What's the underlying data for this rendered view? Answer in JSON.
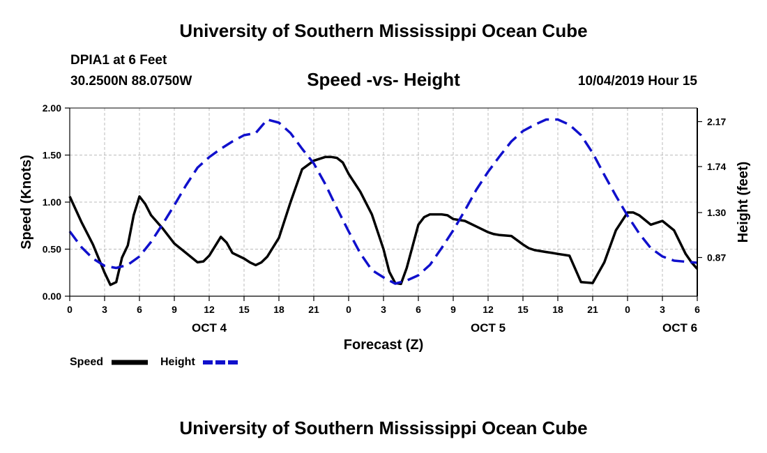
{
  "header": {
    "title": "University of Southern Mississippi Ocean Cube",
    "station": "DPIA1 at 6 Feet",
    "coords": "30.2500N 88.0750W",
    "datetime": "10/04/2019 Hour 15"
  },
  "footer": {
    "title": "University of Southern Mississippi Ocean Cube"
  },
  "colors": {
    "speed": "#000000",
    "height": "#1010cc",
    "grid": "#bbbbbb"
  },
  "chart_data": {
    "type": "line",
    "title": "Speed -vs- Height",
    "xlabel": "Forecast (Z)",
    "ylabel": "Speed (Knots)",
    "y2label": "Height (feet)",
    "xlim": [
      0,
      54
    ],
    "ylim": [
      0,
      2.0
    ],
    "y2lim": [
      0.5,
      2.3
    ],
    "x_ticks": [
      0,
      3,
      6,
      9,
      12,
      15,
      18,
      21,
      24,
      27,
      30,
      33,
      36,
      39,
      42,
      45,
      48,
      51,
      54
    ],
    "x_tick_labels": [
      "0",
      "3",
      "6",
      "9",
      "12",
      "15",
      "18",
      "21",
      "0",
      "3",
      "6",
      "9",
      "12",
      "15",
      "18",
      "21",
      "0",
      "3",
      "6"
    ],
    "y_ticks": [
      0,
      0.5,
      1.0,
      1.5,
      2.0
    ],
    "y_tick_labels": [
      "0.00",
      "0.50",
      "1.00",
      "1.50",
      "2.00"
    ],
    "y2_ticks": [
      0.87,
      1.3,
      1.74,
      2.17
    ],
    "y2_tick_labels": [
      "0.87",
      "1.30",
      "1.74",
      "2.17"
    ],
    "day_labels": [
      {
        "label": "OCT 4",
        "x": 12
      },
      {
        "label": "OCT 5",
        "x": 36
      },
      {
        "label": "OCT 6",
        "x": 52.5
      }
    ],
    "grid": true,
    "legend_position": "bottom-left",
    "series": [
      {
        "name": "Speed",
        "axis": "left",
        "style": "solid",
        "x": [
          0,
          1,
          2,
          3,
          3.5,
          4,
          4.5,
          5,
          5.5,
          6,
          6.5,
          7,
          8,
          9,
          10,
          11,
          11.5,
          12,
          13,
          13.5,
          14,
          15,
          15.5,
          16,
          16.5,
          17,
          18,
          19,
          20,
          21,
          22,
          22.5,
          23,
          23.5,
          24,
          25,
          26,
          27,
          27.5,
          28,
          28.5,
          29,
          30,
          30.5,
          31,
          32,
          32.5,
          33,
          34,
          35,
          36,
          36.5,
          37,
          38,
          39,
          39.5,
          40,
          41,
          41.5,
          42,
          43,
          44,
          45,
          46,
          46.5,
          47,
          48,
          48.5,
          49,
          50,
          50.5,
          51,
          52,
          53,
          53.5,
          54
        ],
        "y": [
          1.06,
          0.79,
          0.55,
          0.25,
          0.12,
          0.15,
          0.41,
          0.54,
          0.86,
          1.06,
          0.98,
          0.86,
          0.72,
          0.56,
          0.46,
          0.36,
          0.37,
          0.43,
          0.63,
          0.57,
          0.46,
          0.4,
          0.36,
          0.33,
          0.36,
          0.42,
          0.62,
          1.0,
          1.35,
          1.44,
          1.48,
          1.48,
          1.47,
          1.42,
          1.3,
          1.11,
          0.87,
          0.5,
          0.26,
          0.14,
          0.13,
          0.3,
          0.76,
          0.84,
          0.87,
          0.87,
          0.86,
          0.82,
          0.8,
          0.74,
          0.68,
          0.66,
          0.65,
          0.64,
          0.55,
          0.51,
          0.49,
          0.47,
          0.46,
          0.45,
          0.43,
          0.15,
          0.14,
          0.36,
          0.53,
          0.7,
          0.89,
          0.89,
          0.86,
          0.76,
          0.78,
          0.8,
          0.7,
          0.45,
          0.36,
          0.29
        ]
      },
      {
        "name": "Height",
        "axis": "right",
        "style": "dashed",
        "x": [
          0,
          1,
          2,
          3,
          4,
          5,
          6,
          7,
          8,
          9,
          10,
          11,
          12,
          13,
          14,
          15,
          16,
          17,
          18,
          19,
          20,
          21,
          22,
          23,
          24,
          25,
          26,
          27,
          28,
          29,
          30,
          31,
          32,
          33,
          34,
          35,
          36,
          37,
          38,
          39,
          40,
          41,
          42,
          43,
          44,
          45,
          46,
          47,
          48,
          49,
          50,
          51,
          52,
          53,
          54
        ],
        "y": [
          1.12,
          0.97,
          0.86,
          0.79,
          0.77,
          0.8,
          0.88,
          1.02,
          1.19,
          1.37,
          1.56,
          1.73,
          1.83,
          1.91,
          1.98,
          2.04,
          2.06,
          2.19,
          2.16,
          2.06,
          1.91,
          1.77,
          1.57,
          1.34,
          1.12,
          0.91,
          0.75,
          0.68,
          0.62,
          0.65,
          0.7,
          0.8,
          0.96,
          1.13,
          1.32,
          1.52,
          1.69,
          1.84,
          1.98,
          2.08,
          2.14,
          2.19,
          2.19,
          2.14,
          2.04,
          1.87,
          1.66,
          1.46,
          1.27,
          1.1,
          0.96,
          0.88,
          0.84,
          0.83,
          0.82
        ]
      }
    ],
    "legend": [
      {
        "label": "Speed",
        "style": "solid"
      },
      {
        "label": "Height",
        "style": "dashed"
      }
    ]
  }
}
